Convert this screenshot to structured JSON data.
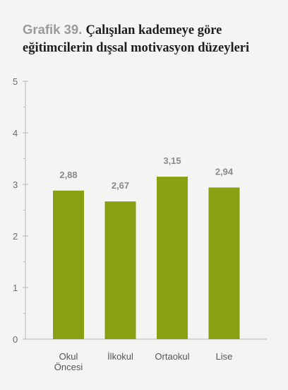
{
  "title": {
    "prefix": "Grafik 39.",
    "main": "Çalışılan kademeye göre eğitimcilerin dışsal motivasyon düzeyleri"
  },
  "colors": {
    "bar": "#89a012",
    "axis": "#b8b8b8",
    "background": "#f4f4f2"
  },
  "chart_data": {
    "type": "bar",
    "categories": [
      "Okul\nÖncesi",
      "İlkokul",
      "Ortaokul",
      "Lise"
    ],
    "values": [
      2.88,
      2.67,
      3.15,
      2.94
    ],
    "value_labels": [
      "2,88",
      "2,67",
      "3,15",
      "2,94"
    ],
    "yticks": [
      "0",
      "1",
      "2",
      "3",
      "4",
      "5"
    ],
    "ylim": [
      0,
      5
    ],
    "xlabel": "",
    "ylabel": "",
    "grid": false
  }
}
